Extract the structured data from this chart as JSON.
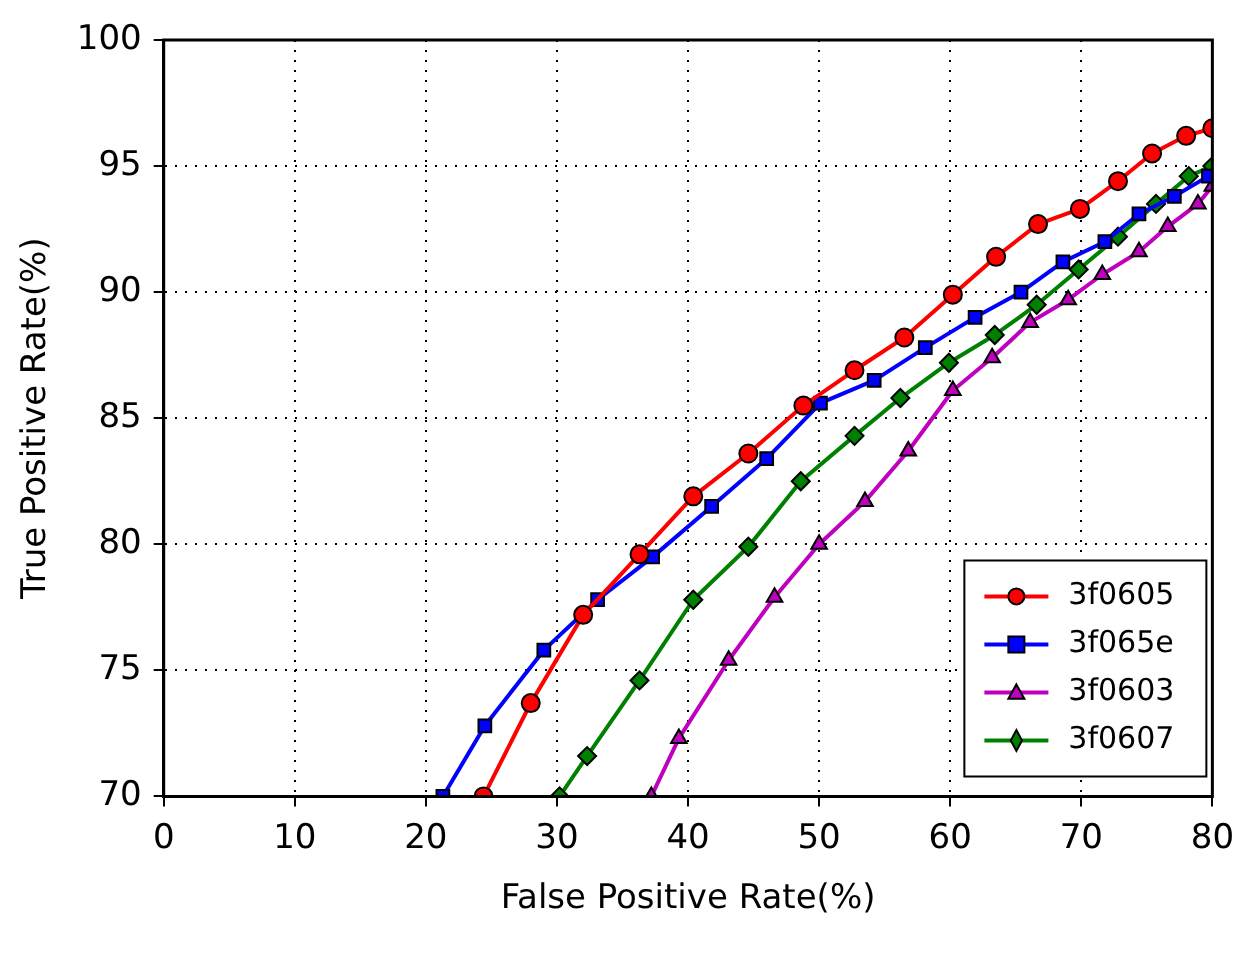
{
  "chart_data": {
    "type": "line",
    "xlabel": "False Positive Rate(%)",
    "ylabel": "True Positive Rate(%)",
    "xlim": [
      0,
      80
    ],
    "ylim": [
      70,
      100
    ],
    "xticks": [
      0,
      10,
      20,
      30,
      40,
      50,
      60,
      70,
      80
    ],
    "yticks": [
      70,
      75,
      80,
      85,
      90,
      95,
      100
    ],
    "grid": true,
    "legend": "bottom right",
    "line_style": "solid",
    "series": [
      {
        "name": "3f0605",
        "color": "#ff0000",
        "marker": "circle",
        "x": [
          24.4,
          28.0,
          32.0,
          36.3,
          40.4,
          44.6,
          48.8,
          52.7,
          56.5,
          60.2,
          63.5,
          66.7,
          69.9,
          72.8,
          75.4,
          78.0,
          80.0
        ],
        "values": [
          70.0,
          73.7,
          77.2,
          79.6,
          81.9,
          83.6,
          85.5,
          86.9,
          88.2,
          89.9,
          91.4,
          92.7,
          93.3,
          94.4,
          95.5,
          96.2,
          96.5
        ]
      },
      {
        "name": "3f065e",
        "color": "#0000ff",
        "marker": "square",
        "x": [
          21.3,
          24.5,
          29.0,
          33.1,
          37.3,
          41.8,
          46.0,
          50.1,
          54.2,
          58.1,
          61.9,
          65.4,
          68.6,
          71.8,
          74.4,
          77.1,
          79.7
        ],
        "values": [
          70.0,
          72.8,
          75.8,
          77.8,
          79.5,
          81.5,
          83.4,
          85.6,
          86.5,
          87.8,
          89.0,
          90.0,
          91.2,
          92.0,
          93.1,
          93.8,
          94.6
        ]
      },
      {
        "name": "3f0603",
        "color": "#bf00bf",
        "marker": "triangle",
        "x": [
          37.2,
          39.3,
          43.1,
          46.6,
          50.0,
          53.5,
          56.8,
          60.2,
          63.2,
          66.1,
          69.0,
          71.6,
          74.4,
          76.6,
          78.9,
          80.0
        ],
        "values": [
          70.0,
          72.3,
          75.4,
          77.9,
          80.0,
          81.7,
          83.7,
          86.1,
          87.4,
          88.8,
          89.7,
          90.7,
          91.6,
          92.6,
          93.5,
          94.2
        ]
      },
      {
        "name": "3f0607",
        "color": "#008000",
        "marker": "diamond",
        "x": [
          30.2,
          32.3,
          36.3,
          40.4,
          44.6,
          48.6,
          52.7,
          56.2,
          59.9,
          63.4,
          66.6,
          69.8,
          72.8,
          75.7,
          78.2,
          80.0
        ],
        "values": [
          70.0,
          71.6,
          74.6,
          77.8,
          79.9,
          82.5,
          84.3,
          85.8,
          87.2,
          88.3,
          89.5,
          90.9,
          92.2,
          93.5,
          94.6,
          95.0
        ]
      }
    ]
  }
}
